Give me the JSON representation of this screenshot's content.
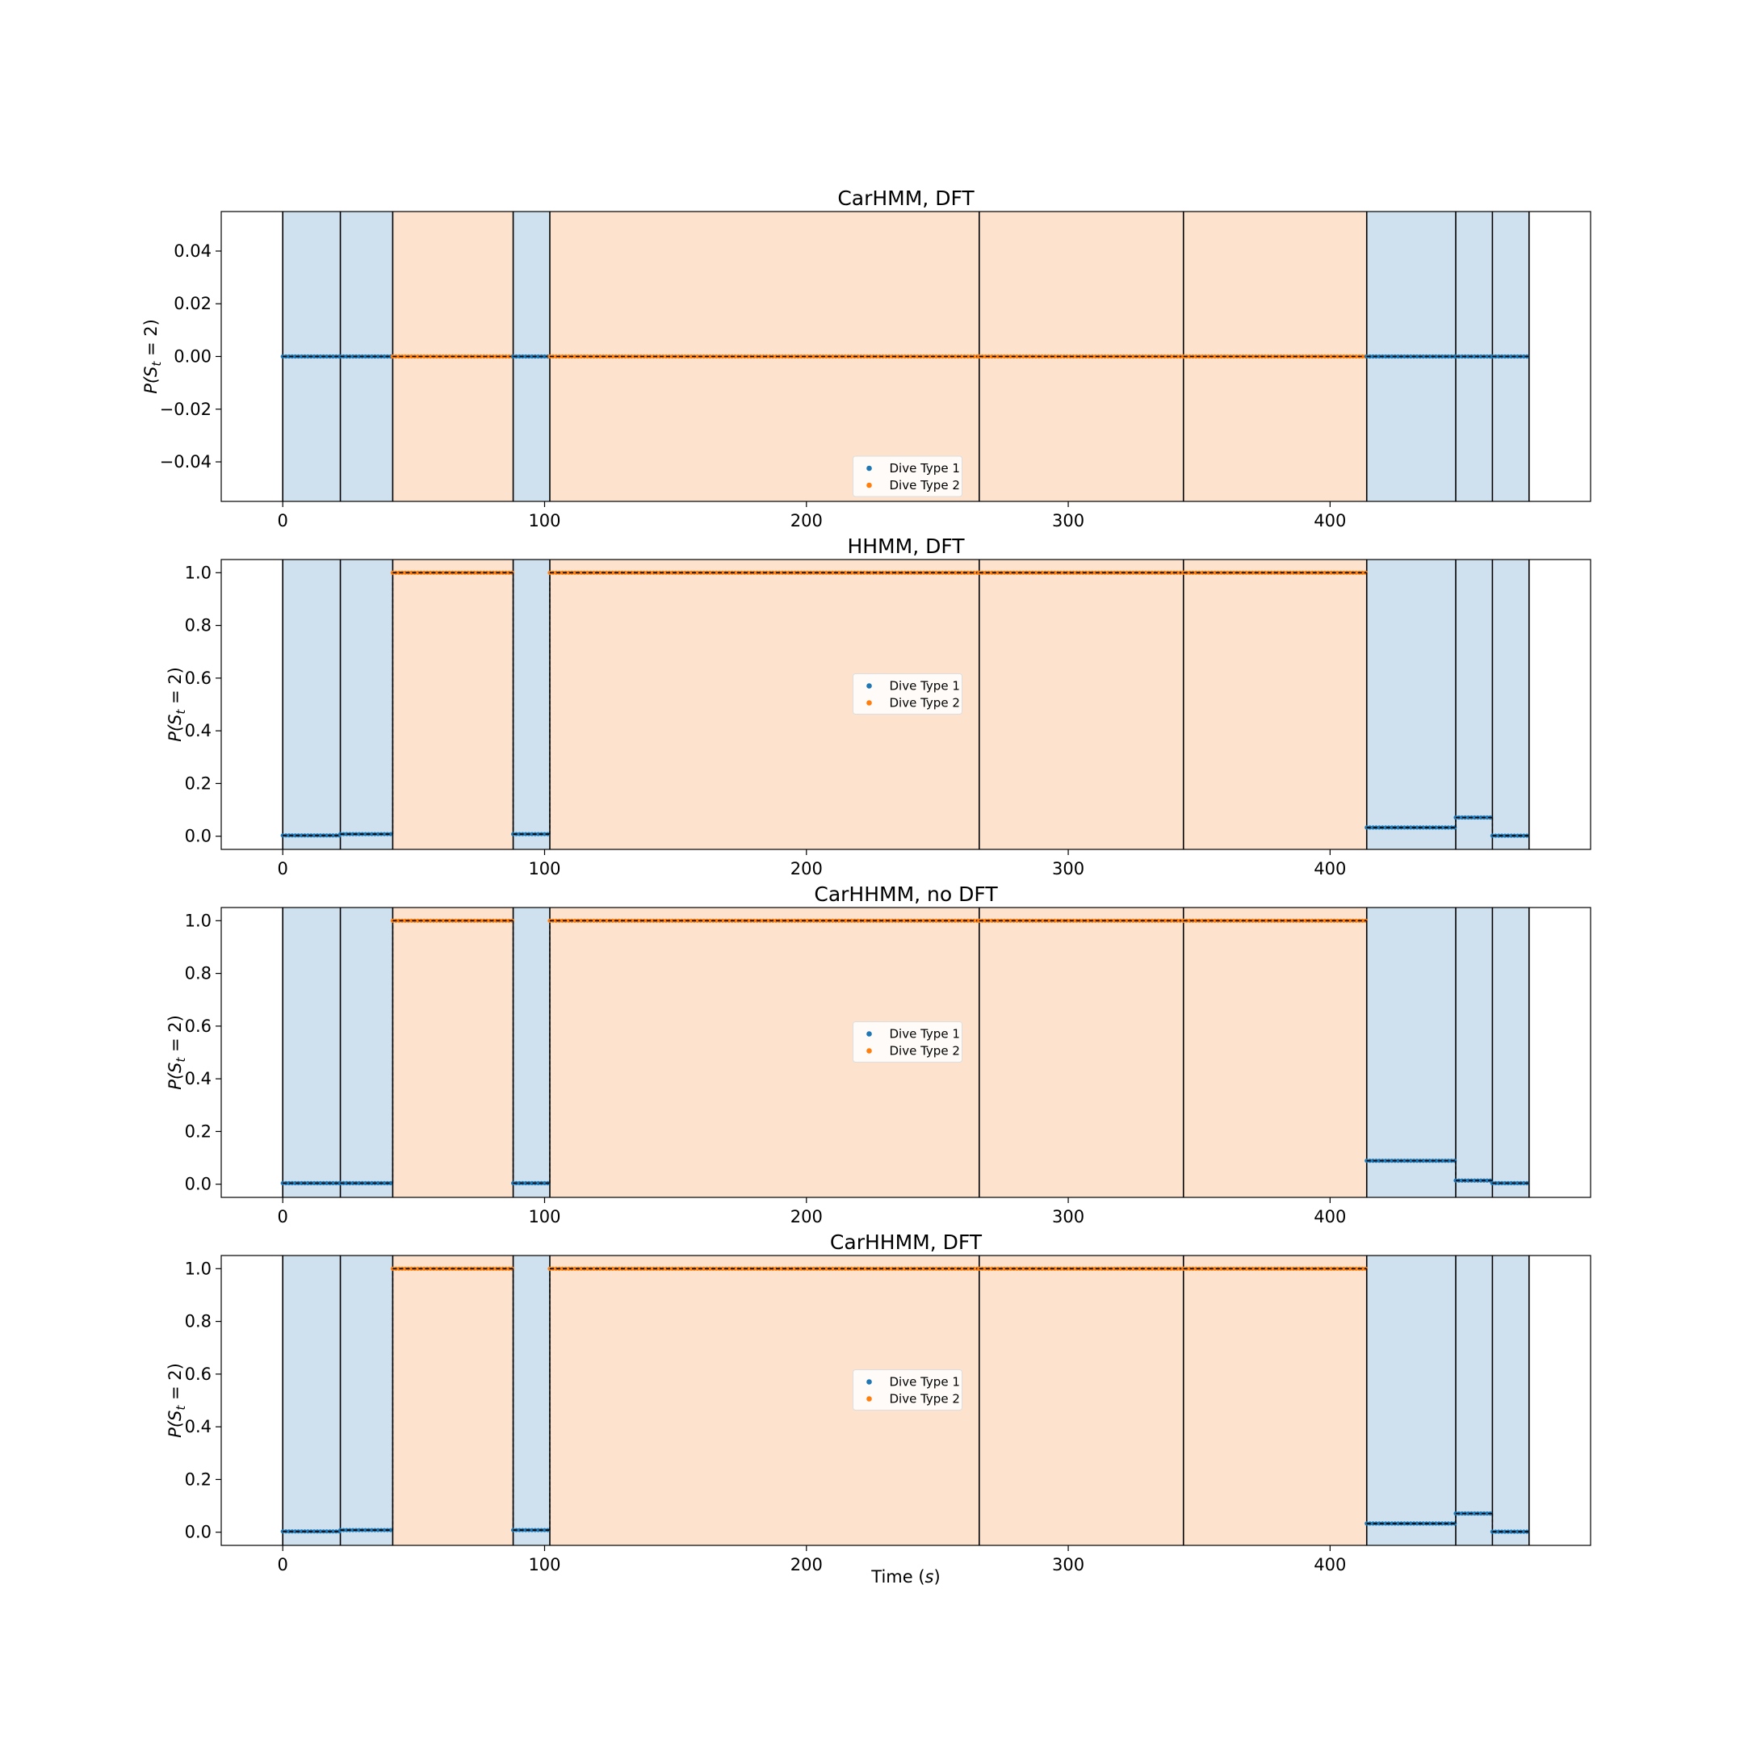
{
  "chart_data": {
    "type": "scatter",
    "x_label_main": "Time (",
    "x_label_unit": "s",
    "x_label_close": ")",
    "y_label_pre": "P(S",
    "y_label_sub": "t",
    "y_label_post": " = 2)",
    "xlim": [
      -23.5,
      499.5
    ],
    "x_ticks": [
      0,
      100,
      200,
      300,
      400
    ],
    "legend_entries": [
      "Dive Type 1",
      "Dive Type 2"
    ],
    "colors": {
      "dive_type_1": "#1f77b4",
      "dive_type_2": "#ff7f0e",
      "shade_dive_type_1": "#cfe1ef",
      "shade_dive_type_2": "#fde3cd"
    },
    "segments": [
      {
        "start": 0,
        "end": 22,
        "dive_type": 1
      },
      {
        "start": 22,
        "end": 42,
        "dive_type": 1
      },
      {
        "start": 42,
        "end": 88,
        "dive_type": 2
      },
      {
        "start": 88,
        "end": 102,
        "dive_type": 1
      },
      {
        "start": 102,
        "end": 266,
        "dive_type": 2
      },
      {
        "start": 266,
        "end": 344,
        "dive_type": 2
      },
      {
        "start": 344,
        "end": 414,
        "dive_type": 2
      },
      {
        "start": 414,
        "end": 448,
        "dive_type": 1
      },
      {
        "start": 448,
        "end": 462,
        "dive_type": 1
      },
      {
        "start": 462,
        "end": 476,
        "dive_type": 1
      }
    ],
    "panels": [
      {
        "title": "CarHMM, DFT",
        "ylim": [
          -0.055,
          0.055
        ],
        "y_ticks": [
          -0.04,
          -0.02,
          0.0,
          0.02,
          0.04
        ],
        "y_tick_labels": [
          "−0.04",
          "−0.02",
          "0.00",
          "0.02",
          "0.04"
        ],
        "legend_position": "lower center",
        "values": [
          0.0,
          0.0,
          0.0,
          0.0,
          0.0,
          0.0,
          0.0,
          0.0,
          0.0,
          0.0
        ]
      },
      {
        "title": "HHMM, DFT",
        "ylim": [
          -0.05,
          1.05
        ],
        "y_ticks": [
          0.0,
          0.2,
          0.4,
          0.6,
          0.8,
          1.0
        ],
        "y_tick_labels": [
          "0.0",
          "0.2",
          "0.4",
          "0.6",
          "0.8",
          "1.0"
        ],
        "legend_position": "center",
        "values": [
          0.003,
          0.008,
          1.0,
          0.008,
          1.0,
          1.0,
          1.0,
          0.033,
          0.071,
          0.002
        ]
      },
      {
        "title": "CarHHMM, no DFT",
        "ylim": [
          -0.05,
          1.05
        ],
        "y_ticks": [
          0.0,
          0.2,
          0.4,
          0.6,
          0.8,
          1.0
        ],
        "y_tick_labels": [
          "0.0",
          "0.2",
          "0.4",
          "0.6",
          "0.8",
          "1.0"
        ],
        "legend_position": "center",
        "values": [
          0.004,
          0.004,
          1.0,
          0.004,
          1.0,
          1.0,
          1.0,
          0.089,
          0.014,
          0.004
        ]
      },
      {
        "title": "CarHHMM, DFT",
        "ylim": [
          -0.05,
          1.05
        ],
        "y_ticks": [
          0.0,
          0.2,
          0.4,
          0.6,
          0.8,
          1.0
        ],
        "y_tick_labels": [
          "0.0",
          "0.2",
          "0.4",
          "0.6",
          "0.8",
          "1.0"
        ],
        "legend_position": "center",
        "values": [
          0.003,
          0.008,
          1.0,
          0.008,
          1.0,
          1.0,
          1.0,
          0.033,
          0.071,
          0.002
        ]
      }
    ]
  }
}
